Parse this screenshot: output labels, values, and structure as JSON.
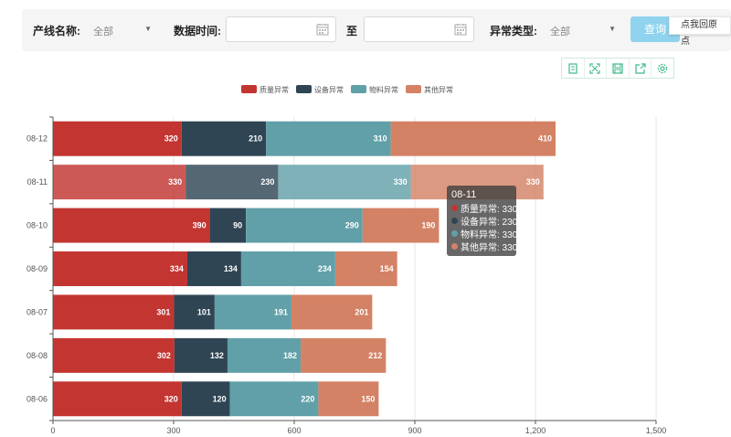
{
  "filters": {
    "line_label": "产线名称:",
    "line_value": "全部",
    "time_label": "数据时间:",
    "to_label": "至",
    "type_label": "异常类型:",
    "type_value": "全部",
    "query_label": "查询",
    "restore_tooltip": "点我回原点"
  },
  "toolbox": [
    "data-view-icon",
    "zoom-icon",
    "save-image-icon",
    "export-icon",
    "settings-icon"
  ],
  "chart_data": {
    "type": "bar",
    "orientation": "horizontal",
    "stacked": true,
    "categories": [
      "08-12",
      "08-11",
      "08-10",
      "08-09",
      "08-07",
      "08-08",
      "08-06"
    ],
    "series": [
      {
        "name": "质量异常",
        "color": "#c23531",
        "values": [
          320,
          330,
          390,
          334,
          301,
          302,
          320
        ]
      },
      {
        "name": "设备异常",
        "color": "#2f4554",
        "values": [
          210,
          230,
          90,
          134,
          101,
          132,
          120
        ]
      },
      {
        "name": "物料异常",
        "color": "#61a0a8",
        "values": [
          310,
          330,
          290,
          234,
          191,
          182,
          220
        ]
      },
      {
        "name": "其他异常",
        "color": "#d48265",
        "values": [
          410,
          330,
          190,
          154,
          201,
          212,
          150
        ]
      }
    ],
    "xlim": [
      0,
      1500
    ],
    "xticks": [
      "0",
      "300",
      "600",
      "900",
      "1,200",
      "1,500"
    ],
    "highlighted_category": "08-11",
    "legend_position": "top"
  },
  "tooltip": {
    "title": "08-11",
    "rows": [
      {
        "text": "质量异常: 330",
        "color": "#c23531"
      },
      {
        "text": "设备异常: 230",
        "color": "#2f4554"
      },
      {
        "text": "物料异常: 330",
        "color": "#61a0a8"
      },
      {
        "text": "其他异常: 330",
        "color": "#d48265"
      }
    ]
  }
}
